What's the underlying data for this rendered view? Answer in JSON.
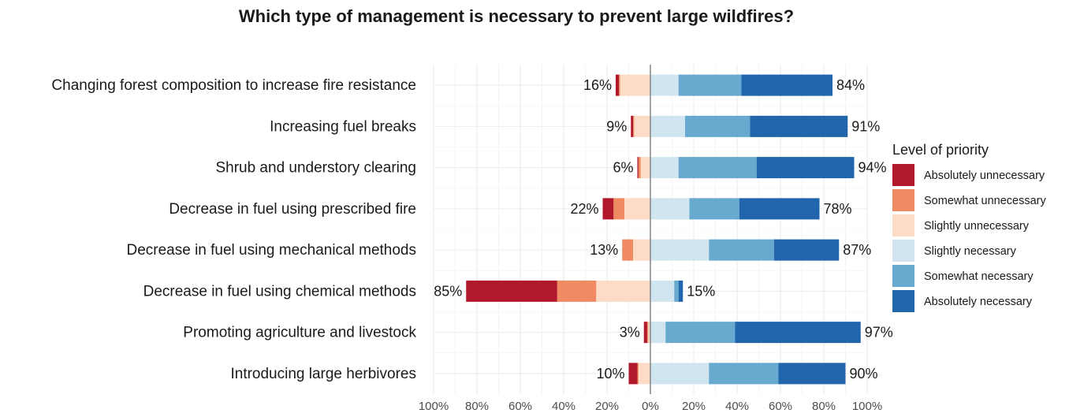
{
  "chart_data": {
    "type": "bar",
    "orientation": "horizontal",
    "stacked": "diverging",
    "title": "Which type of management is necessary to prevent large wildfires?",
    "xlabel": "",
    "ylabel": "",
    "xlim": [
      -100,
      100
    ],
    "x_ticks": [
      "100%",
      "80%",
      "60%",
      "40%",
      "20%",
      "0%",
      "20%",
      "40%",
      "60%",
      "80%",
      "100%"
    ],
    "grid": true,
    "legend_title": "Level of priority",
    "legend_position": "right",
    "categories": [
      "Changing forest composition to increase fire resistance",
      "Increasing fuel breaks",
      "Shrub and understory clearing",
      "Decrease in fuel using prescribed fire",
      "Decrease in fuel using mechanical methods",
      "Decrease in fuel using chemical methods",
      "Promoting agriculture and livestock",
      "Introducing large herbivores"
    ],
    "series": [
      {
        "name": "Absolutely unnecessary",
        "color": "#b2182b",
        "side": "negative",
        "values": [
          1.5,
          1,
          0.5,
          5,
          0,
          42,
          1.5,
          4
        ]
      },
      {
        "name": "Somewhat unnecessary",
        "color": "#ef8a62",
        "side": "negative",
        "values": [
          0.5,
          0.5,
          1,
          5,
          5,
          18,
          0.5,
          0.5
        ]
      },
      {
        "name": "Slightly unnecessary",
        "color": "#fddbc7",
        "side": "negative",
        "values": [
          14,
          7.5,
          4.5,
          12,
          8,
          25,
          1,
          5.5
        ]
      },
      {
        "name": "Slightly necessary",
        "color": "#d1e5f0",
        "side": "positive",
        "values": [
          13,
          16,
          13,
          18,
          27,
          11,
          7,
          27
        ]
      },
      {
        "name": "Somewhat necessary",
        "color": "#67a9cf",
        "side": "positive",
        "values": [
          29,
          30,
          36,
          23,
          30,
          2,
          32,
          32
        ]
      },
      {
        "name": "Absolutely necessary",
        "color": "#2166ac",
        "side": "positive",
        "values": [
          42,
          45,
          45,
          37,
          30,
          2,
          58,
          31
        ]
      }
    ],
    "negative_totals": [
      "16%",
      "9%",
      "6%",
      "22%",
      "13%",
      "85%",
      "3%",
      "10%"
    ],
    "positive_totals": [
      "84%",
      "91%",
      "94%",
      "78%",
      "87%",
      "15%",
      "97%",
      "90%"
    ]
  }
}
